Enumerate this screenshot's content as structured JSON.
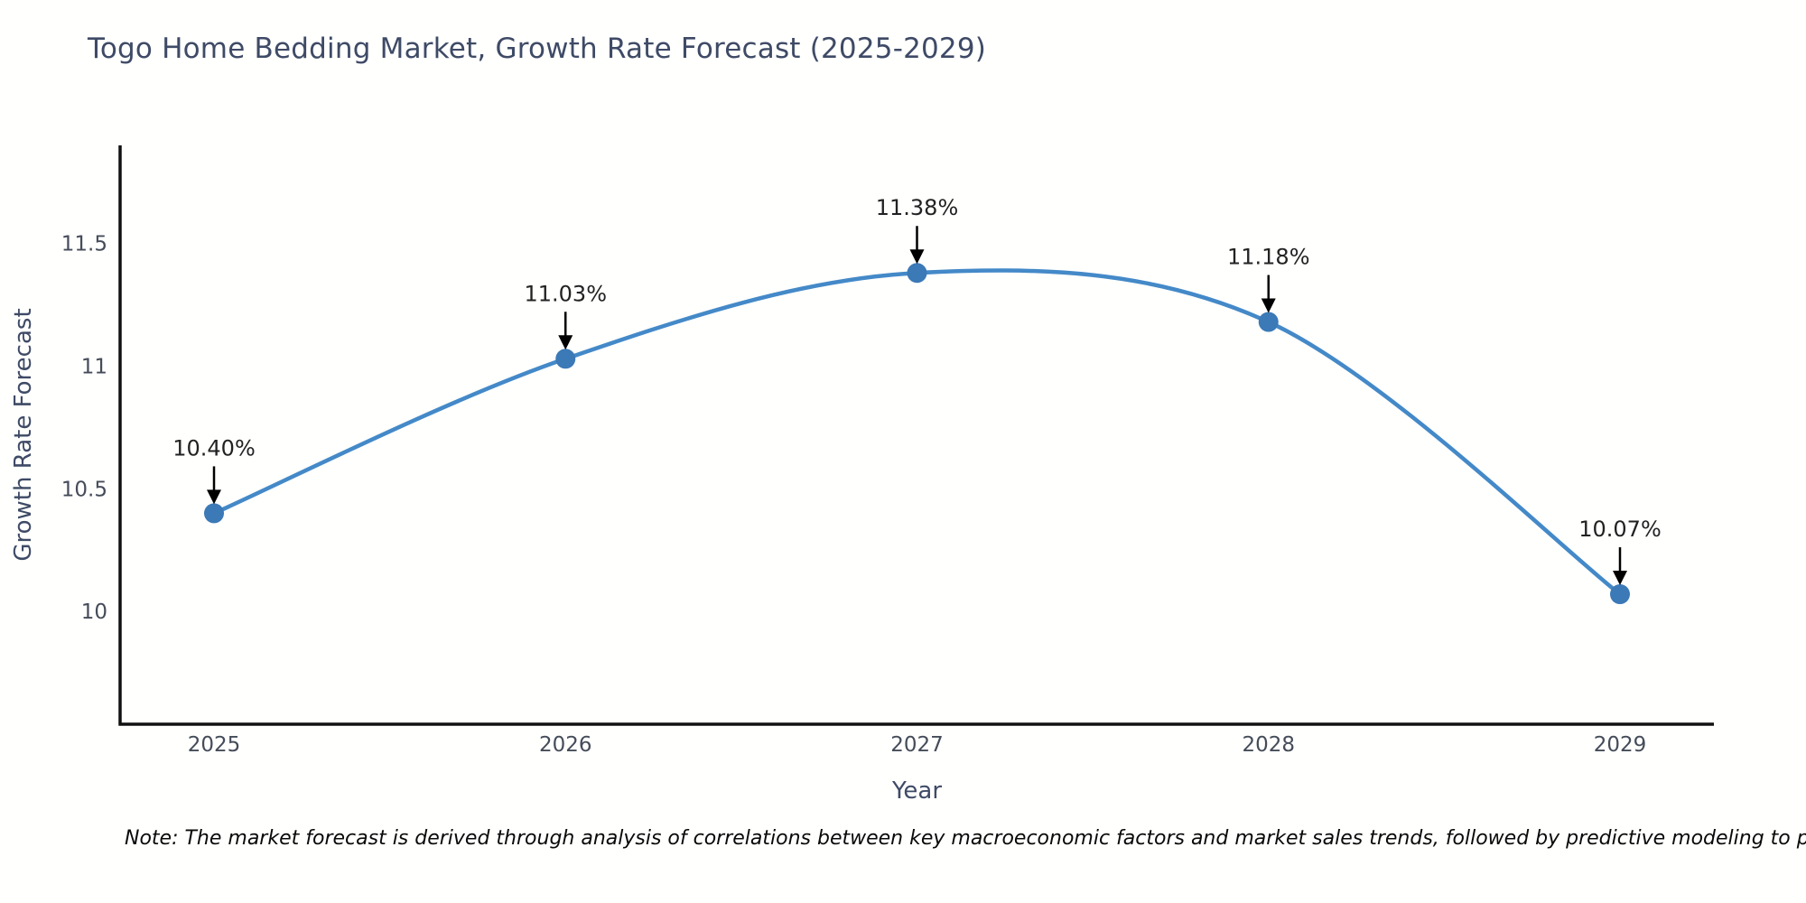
{
  "chart_data": {
    "type": "line",
    "title": "Togo Home Bedding Market, Growth Rate Forecast (2025-2029)",
    "x": [
      2025,
      2026,
      2027,
      2028,
      2029
    ],
    "series": [
      {
        "name": "Growth Rate Forecast",
        "values": [
          10.4,
          11.03,
          11.38,
          11.18,
          10.07
        ]
      }
    ],
    "point_labels": [
      "10.40%",
      "11.03%",
      "11.38%",
      "11.18%",
      "10.07%"
    ],
    "xlabel": "Year",
    "ylabel": "Growth Rate Forecast",
    "xtick_labels": [
      "2025",
      "2026",
      "2027",
      "2028",
      "2029"
    ],
    "ytick_values": [
      10,
      10.5,
      11,
      11.5
    ],
    "ytick_labels": [
      "10",
      "10.5",
      "11",
      "11.5"
    ],
    "ylim": [
      9.54,
      11.9
    ],
    "grid": false,
    "legend_position": "none",
    "line_shape": "spline",
    "colors": {
      "line": "#4489c8",
      "marker": "#3b79b7",
      "axis_line": "#111111",
      "title_text": "#3e4a66",
      "axis_title_text": "#3e4a66",
      "tick_text": "#454c59",
      "annotation_text": "#222222",
      "annotation_arrow": "#000000"
    }
  },
  "note": {
    "text": "Note: The market forecast is derived through analysis of correlations between key macroeconomic factors and market sales trends, followed by predictive modeling to project future sal"
  }
}
